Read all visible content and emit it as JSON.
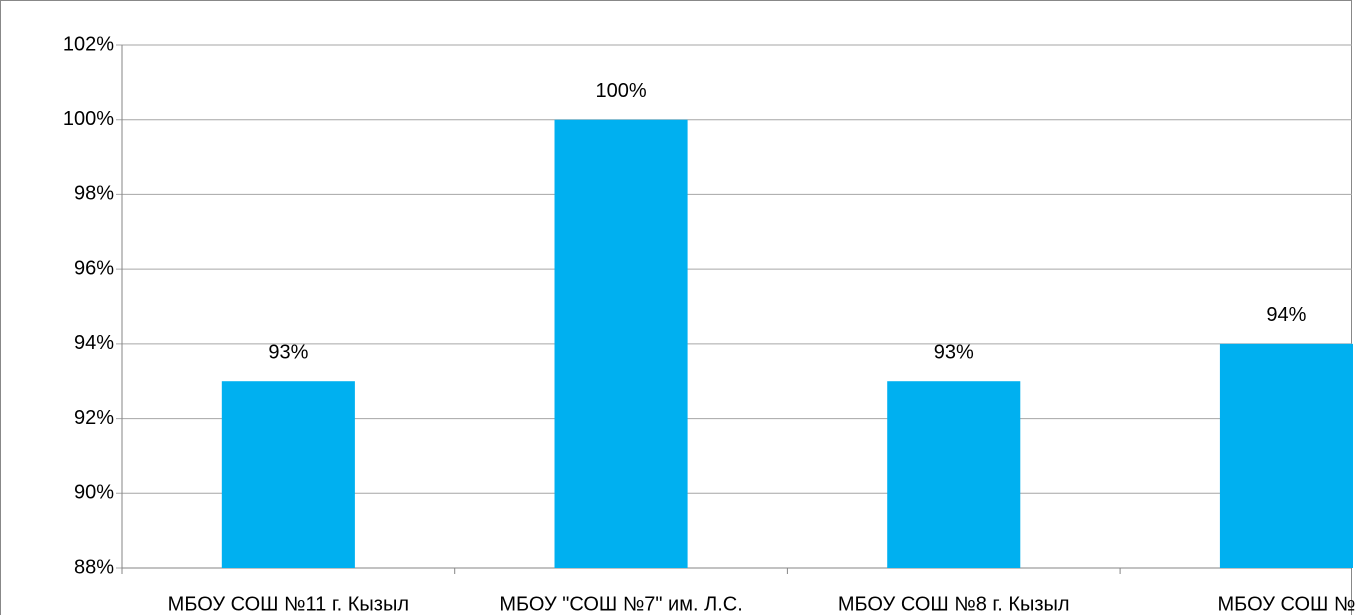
{
  "chart_data": {
    "type": "bar",
    "categories": [
      "МБОУ СОШ №11 г. Кызыл",
      "МБОУ \"СОШ №7\" им. Л.С.",
      "МБОУ СОШ №8 г. Кызыл",
      "МБОУ СОШ №"
    ],
    "values": [
      93,
      100,
      93,
      94
    ],
    "value_labels": [
      "93%",
      "100%",
      "93%",
      "94%"
    ],
    "color": "#00b0f0",
    "ylim": [
      88,
      102
    ],
    "yticks": [
      {
        "value": 88,
        "label": "88%"
      },
      {
        "value": 90,
        "label": "90%"
      },
      {
        "value": 92,
        "label": "92%"
      },
      {
        "value": 94,
        "label": "94%"
      },
      {
        "value": 96,
        "label": "96%"
      },
      {
        "value": 98,
        "label": "98%"
      },
      {
        "value": 100,
        "label": "100%"
      },
      {
        "value": 102,
        "label": "102%"
      }
    ],
    "grid": true
  }
}
